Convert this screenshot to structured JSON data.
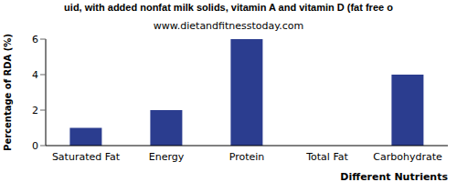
{
  "chart_data": {
    "type": "bar",
    "title": "uid, with added nonfat milk solids, vitamin A and vitamin D (fat free o",
    "subtitle": "www.dietandfitnesstoday.com",
    "x_label": "Different Nutrients",
    "y_label": "Percentage of RDA (%)",
    "categories": [
      "Saturated Fat",
      "Energy",
      "Protein",
      "Total Fat",
      "Carbohydrate"
    ],
    "values": [
      1,
      2,
      6,
      0,
      4
    ],
    "color": "#2b3d8f",
    "ylim": [
      0,
      6
    ],
    "yticks": [
      0,
      2,
      4,
      6
    ],
    "grid": false
  }
}
